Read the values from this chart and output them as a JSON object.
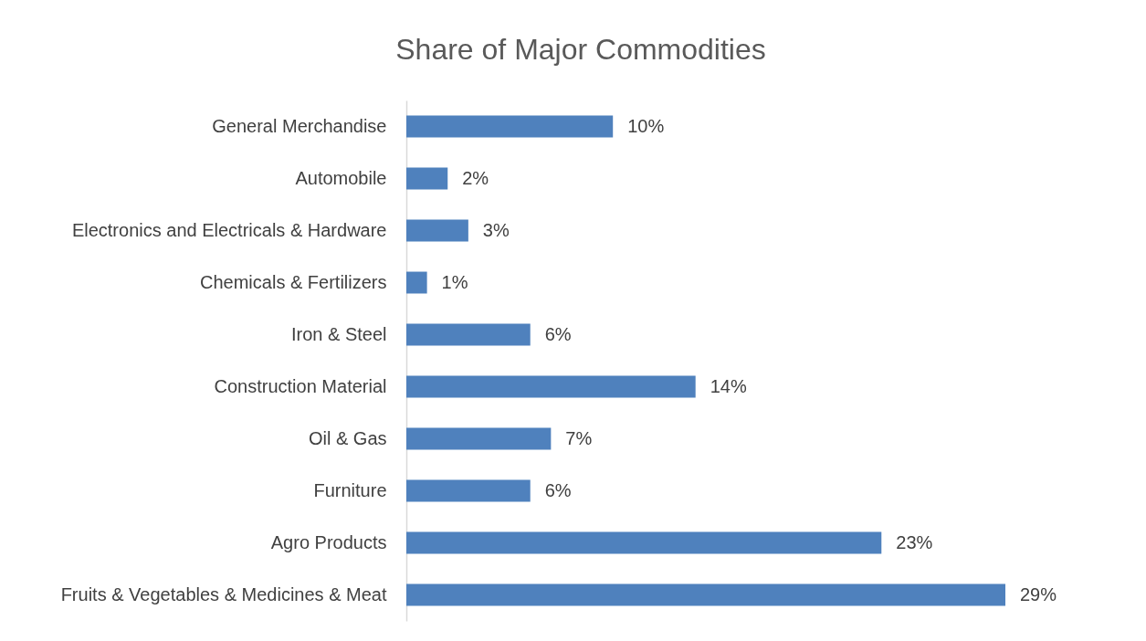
{
  "chart_data": {
    "type": "bar",
    "orientation": "horizontal",
    "title": "Share of Major Commodities",
    "categories": [
      "General Merchandise",
      "Automobile",
      "Electronics and Electricals & Hardware",
      "Chemicals & Fertilizers",
      "Iron & Steel",
      "Construction Material",
      "Oil & Gas",
      "Furniture",
      "Agro Products",
      "Fruits & Vegetables & Medicines & Meat"
    ],
    "values": [
      10,
      2,
      3,
      1,
      6,
      14,
      7,
      6,
      23,
      29
    ],
    "value_labels": [
      "10%",
      "2%",
      "3%",
      "1%",
      "6%",
      "14%",
      "7%",
      "6%",
      "23%",
      "29%"
    ],
    "color": "#4f81bd",
    "grid": false
  }
}
